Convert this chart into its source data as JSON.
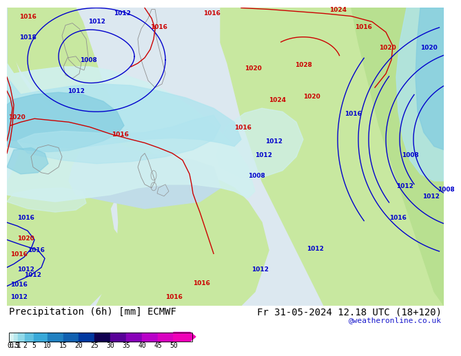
{
  "title_left": "Precipitation (6h) [mm] ECMWF",
  "title_right": "Fr 31-05-2024 12.18 UTC (18+120)",
  "credit": "@weatheronline.co.uk",
  "colorbar_values": [
    "0.1",
    "0.5",
    "1",
    "2",
    "5",
    "10",
    "15",
    "20",
    "25",
    "30",
    "35",
    "40",
    "45",
    "50"
  ],
  "colorbar_colors": [
    "#d8f4f4",
    "#b8e8ee",
    "#90d8e8",
    "#60c0e0",
    "#38a8d8",
    "#2080c0",
    "#1060b0",
    "#0038a0",
    "#100050",
    "#580098",
    "#8800b8",
    "#b800c8",
    "#d800c0",
    "#f000b8"
  ],
  "land_green": "#c8e8a0",
  "land_green2": "#b8e090",
  "ocean_pink": "#e8ddd8",
  "ocean_blue_light": "#d0eef8",
  "precip_vlight": "#d0f0f0",
  "precip_light": "#b0e4ee",
  "precip_medium": "#80cce0",
  "precip_dark": "#50acd0",
  "fig_bg": "#ffffff",
  "contour_red": "#cc0000",
  "contour_blue": "#0000cc",
  "contour_gray": "#909090",
  "font_size_title": 10,
  "font_size_tick": 7,
  "font_size_credit": 8,
  "font_size_label": 7
}
